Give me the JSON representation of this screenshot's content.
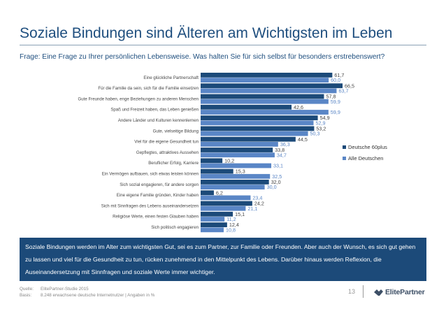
{
  "header": {
    "title": "Soziale Bindungen sind Älteren am Wichtigsten im Leben",
    "question": "Frage: Eine Frage zu Ihrer persönlichen Lebensweise. Was halten Sie für sich selbst für besonders erstrebenswert?"
  },
  "colors": {
    "series1": "#1c4a79",
    "series2": "#5a86c6",
    "title": "#1e4e7e",
    "box": "#1c4a79"
  },
  "chart_data": {
    "type": "bar",
    "orientation": "horizontal",
    "categories": [
      "Eine glückliche Partnerschaft",
      "Für die Familie da sein, sich für die Familie einsetzen",
      "Gute Freunde haben, enge Beziehungen zu anderen Menschen",
      "Spaß und Freizeit haben, das Leben genießen",
      "Andere Länder und Kulturen kennenlernen",
      "Gute, vielseitige Bildung",
      "Viel für die eigene Gesundheit tun",
      "Gepflegtes, attraktives Aussehen",
      "Beruflicher Erfolg, Karriere",
      "Ein Vermögen aufbauen, sich etwas leisten können",
      "Sich sozial engagieren, für andere sorgen",
      "Eine eigene Familie gründen, Kinder haben",
      "Sich mit Sinnfragen des Lebens auseinandersetzen",
      "Religiöse Werte, einen festen Glauben haben",
      "Sich politisch engagieren"
    ],
    "series": [
      {
        "name": "Deutsche 60plus",
        "values": [
          61.7,
          66.5,
          57.8,
          42.6,
          54.9,
          53.2,
          44.5,
          33.8,
          10.2,
          15.3,
          32.0,
          6.2,
          24.2,
          15.1,
          12.4
        ],
        "labels": [
          "61,7",
          "66,5",
          "57,8",
          "42,6",
          "54,9",
          "53,2",
          "44,5",
          "33,8",
          "10,2",
          "15,3",
          "32,0",
          "6,2",
          "24,2",
          "15,1",
          "12,4"
        ]
      },
      {
        "name": "Alle Deutschen",
        "values": [
          60.0,
          63.7,
          59.9,
          59.9,
          52.9,
          50.3,
          36.3,
          34.7,
          33.1,
          32.5,
          30.0,
          23.4,
          21.1,
          11.2,
          10.8
        ],
        "labels": [
          "60,0",
          "63,7",
          "59,9",
          "59,9",
          "52,9",
          "50,3",
          "36,3",
          "34,7",
          "33,1",
          "32,5",
          "30,0",
          "23,4",
          "21,1",
          "11,2",
          "10,8"
        ]
      }
    ],
    "xlim": [
      0,
      70
    ],
    "legend_position": "right"
  },
  "summary": "Soziale Bindungen werden im Alter zum wichtigsten Gut, sei es zum Partner, zur Familie oder Freunden. Aber auch der Wunsch, es sich gut gehen zu lassen und viel für die Gesundheit zu tun, rücken zunehmend in den Mittelpunkt des Lebens. Darüber hinaus werden Reflexion, die Auseinandersetzung mit Sinnfragen und soziale Werte immer wichtiger.",
  "footer": {
    "source_label": "Quelle:",
    "source_value": "ElitePartner-Studie 2015",
    "basis_label": "Basis:",
    "basis_value": "8.248 erwachsene deutsche Internetnutzer | Angaben in %"
  },
  "page_number": "13",
  "brand": {
    "name": "ElitePartner",
    "icon": "elitepartner-logo-icon"
  }
}
